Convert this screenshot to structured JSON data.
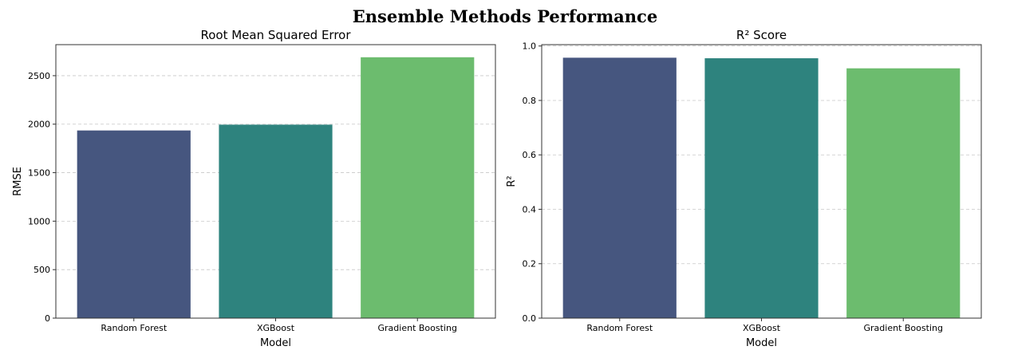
{
  "figure_title": "Ensemble Methods Performance",
  "chart_data": [
    {
      "type": "bar",
      "title": "Root Mean Squared Error",
      "xlabel": "Model",
      "ylabel": "RMSE",
      "categories": [
        "Random Forest",
        "XGBoost",
        "Gradient Boosting"
      ],
      "values": [
        1935,
        1995,
        2690
      ],
      "ylim": [
        0,
        2820
      ],
      "yticks": [
        0,
        500,
        1000,
        1500,
        2000,
        2500
      ],
      "ytick_labels": [
        "0",
        "500",
        "1000",
        "1500",
        "2000",
        "2500"
      ],
      "colors": [
        "#46567f",
        "#2e837e",
        "#6cbc6e"
      ],
      "grid": "y, dashed"
    },
    {
      "type": "bar",
      "title": "R² Score",
      "xlabel": "Model",
      "ylabel": "R²",
      "categories": [
        "Random Forest",
        "XGBoost",
        "Gradient Boosting"
      ],
      "values": [
        0.957,
        0.955,
        0.918
      ],
      "ylim": [
        0,
        1.005
      ],
      "yticks": [
        0,
        0.2,
        0.4,
        0.6,
        0.8,
        1.0
      ],
      "ytick_labels": [
        "0.0",
        "0.2",
        "0.4",
        "0.6",
        "0.8",
        "1.0"
      ],
      "colors": [
        "#46567f",
        "#2e837e",
        "#6cbc6e"
      ],
      "grid": "y, dashed"
    }
  ]
}
